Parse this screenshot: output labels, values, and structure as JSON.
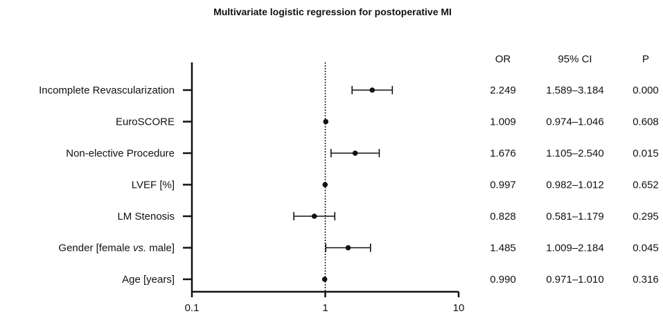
{
  "chart_data": {
    "type": "forest",
    "title": "Multivariate logistic regression for postoperative MI",
    "xscale": "log",
    "xlim": [
      0.1,
      10
    ],
    "xticks": [
      "0.1",
      "1",
      "10"
    ],
    "reference_line": 1,
    "columns": {
      "or": "OR",
      "ci": "95% CI",
      "p": "P"
    },
    "rows": [
      {
        "label": "Incomplete Revascularization",
        "label_prefix": "",
        "label_italic": "",
        "label_suffix": "",
        "or": 2.249,
        "lo": 1.589,
        "hi": 3.184,
        "or_text": "2.249",
        "ci_text": "1.589–3.184",
        "p_text": "0.000"
      },
      {
        "label": "EuroSCORE",
        "label_prefix": "",
        "label_italic": "",
        "label_suffix": "",
        "or": 1.009,
        "lo": 0.974,
        "hi": 1.046,
        "or_text": "1.009",
        "ci_text": "0.974–1.046",
        "p_text": "0.608"
      },
      {
        "label": "Non-elective Procedure",
        "label_prefix": "",
        "label_italic": "",
        "label_suffix": "",
        "or": 1.676,
        "lo": 1.105,
        "hi": 2.54,
        "or_text": "1.676",
        "ci_text": "1.105–2.540",
        "p_text": "0.015"
      },
      {
        "label": "LVEF [%]",
        "label_prefix": "",
        "label_italic": "",
        "label_suffix": "",
        "or": 0.997,
        "lo": 0.982,
        "hi": 1.012,
        "or_text": "0.997",
        "ci_text": "0.982–1.012",
        "p_text": "0.652"
      },
      {
        "label": "LM Stenosis",
        "label_prefix": "",
        "label_italic": "",
        "label_suffix": "",
        "or": 0.828,
        "lo": 0.581,
        "hi": 1.179,
        "or_text": "0.828",
        "ci_text": "0.581–1.179",
        "p_text": "0.295"
      },
      {
        "label": "",
        "label_prefix": "Gender [female ",
        "label_italic": "vs.",
        "label_suffix": " male]",
        "or": 1.485,
        "lo": 1.009,
        "hi": 2.184,
        "or_text": "1.485",
        "ci_text": "1.009–2.184",
        "p_text": "0.045"
      },
      {
        "label": "Age [years]",
        "label_prefix": "",
        "label_italic": "",
        "label_suffix": "",
        "or": 0.99,
        "lo": 0.971,
        "hi": 1.01,
        "or_text": "0.990",
        "ci_text": "0.971–1.010",
        "p_text": "0.316"
      }
    ]
  }
}
